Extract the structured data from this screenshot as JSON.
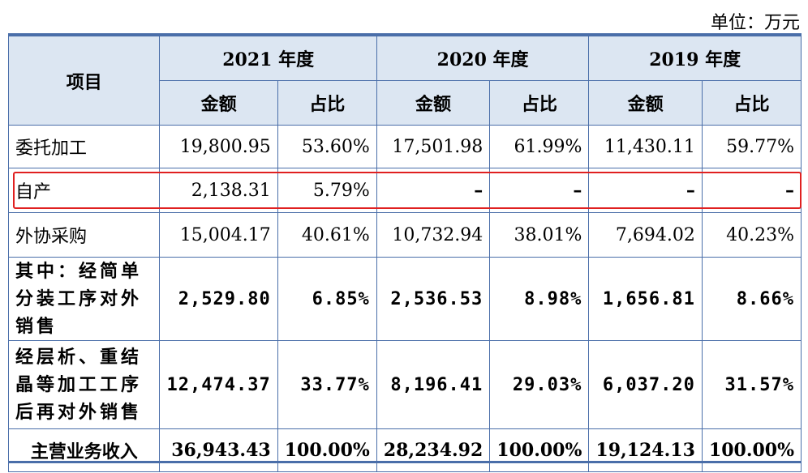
{
  "unit_label": "单位：万元",
  "header": {
    "item": "项目",
    "years": [
      "2021 年度",
      "2020 年度",
      "2019 年度"
    ],
    "amount": "金额",
    "ratio": "占比"
  },
  "rows": [
    {
      "label": "委托加工",
      "values": [
        "19,800.95",
        "53.60%",
        "17,501.98",
        "61.99%",
        "11,430.11",
        "59.77%"
      ]
    },
    {
      "label": "自产",
      "values": [
        "2,138.31",
        "5.79%",
        "–",
        "–",
        "–",
        "–"
      ]
    },
    {
      "label": "外协采购",
      "values": [
        "15,004.17",
        "40.61%",
        "10,732.94",
        "38.01%",
        "7,694.02",
        "40.23%"
      ]
    },
    {
      "label": "其中：经简单分装工序对外销售",
      "values": [
        "2,529.80",
        "6.85%",
        "2,536.53",
        "8.98%",
        "1,656.81",
        "8.66%"
      ]
    },
    {
      "label": "经层析、重结晶等加工工序后再对外销售",
      "values": [
        "12,474.37",
        "33.77%",
        "8,196.41",
        "29.03%",
        "6,037.20",
        "31.57%"
      ]
    },
    {
      "label": "主营业务收入",
      "values": [
        "36,943.43",
        "100.00%",
        "28,234.92",
        "100.00%",
        "19,124.13",
        "100.00%"
      ]
    }
  ],
  "colors": {
    "border": "#4a6ea9",
    "header_bg": "#dce6f2",
    "highlight": "#e02020"
  }
}
